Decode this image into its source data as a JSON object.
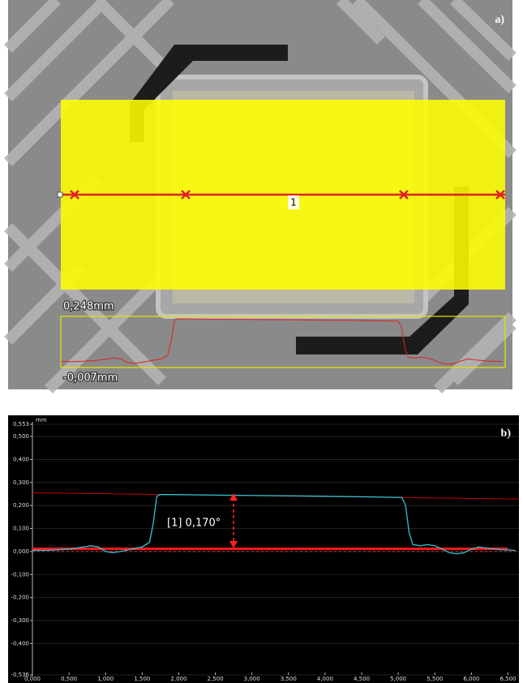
{
  "panel_a": {
    "label": "a)",
    "max_label": "0,248mm",
    "min_label": "-0,007mm",
    "line_label": "1"
  },
  "chart_data": {
    "type": "line",
    "label": "b)",
    "y_unit": "mm",
    "annotation": "[1] 0,170°",
    "x": [
      0,
      0.2,
      0.5,
      0.7,
      0.8,
      0.9,
      1.0,
      1.1,
      1.2,
      1.35,
      1.5,
      1.6,
      1.65,
      1.7,
      1.75,
      2.5,
      3.5,
      4.5,
      5.05,
      5.1,
      5.15,
      5.2,
      5.3,
      5.4,
      5.5,
      5.6,
      5.7,
      5.8,
      5.9,
      6.0,
      6.1,
      6.2,
      6.4,
      6.6
    ],
    "series": [
      {
        "color": "#2ec4d6",
        "values": [
          0.005,
          0.005,
          0.01,
          0.02,
          0.025,
          0.02,
          0.0,
          -0.005,
          0.0,
          0.01,
          0.02,
          0.04,
          0.12,
          0.24,
          0.248,
          0.245,
          0.242,
          0.238,
          0.235,
          0.2,
          0.08,
          0.03,
          0.025,
          0.03,
          0.025,
          0.01,
          -0.005,
          -0.01,
          -0.005,
          0.01,
          0.02,
          0.015,
          0.008,
          0.005
        ]
      }
    ],
    "reference_lines": [
      {
        "x": [
          0,
          6.65
        ],
        "values": [
          0.255,
          0.228
        ],
        "color": "#c00000",
        "width": 1,
        "dashed": false
      },
      {
        "x": [
          0,
          6.5
        ],
        "values": [
          0.012,
          0.012
        ],
        "color": "#ff1a1a",
        "width": 3,
        "dashed": false
      },
      {
        "x": [
          0,
          6.65
        ],
        "values": [
          0,
          0
        ],
        "color": "#ff3030",
        "width": 1,
        "dashed": true
      }
    ],
    "xlim": [
      0,
      6.65
    ],
    "ylim": [
      -0.536,
      0.553
    ],
    "xticks": [
      {
        "value": 0,
        "label": "0,000"
      },
      {
        "value": 0.5,
        "label": "0,500"
      },
      {
        "value": 1,
        "label": "1,000"
      },
      {
        "value": 1.5,
        "label": "1,500"
      },
      {
        "value": 2,
        "label": "2,000"
      },
      {
        "value": 2.5,
        "label": "2,500"
      },
      {
        "value": 3,
        "label": "3,000"
      },
      {
        "value": 3.5,
        "label": "3,500"
      },
      {
        "value": 4,
        "label": "4,000"
      },
      {
        "value": 4.5,
        "label": "4,500"
      },
      {
        "value": 5,
        "label": "5,000"
      },
      {
        "value": 5.5,
        "label": "5,500"
      },
      {
        "value": 6,
        "label": "6,000"
      },
      {
        "value": 6.5,
        "label": "6,500"
      }
    ],
    "yticks": [
      {
        "value": 0.553,
        "label": "0,553"
      },
      {
        "value": 0.5,
        "label": "0,500"
      },
      {
        "value": 0.4,
        "label": "0,400"
      },
      {
        "value": 0.3,
        "label": "0,300"
      },
      {
        "value": 0.2,
        "label": "0,200"
      },
      {
        "value": 0.1,
        "label": "0,100"
      },
      {
        "value": 0,
        "label": "0,000"
      },
      {
        "value": -0.1,
        "label": "-0,100"
      },
      {
        "value": -0.2,
        "label": "-0,200"
      },
      {
        "value": -0.3,
        "label": "-0,300"
      },
      {
        "value": -0.4,
        "label": "-0,400"
      },
      {
        "value": -0.536,
        "label": "-0,536"
      }
    ],
    "grid": true
  }
}
